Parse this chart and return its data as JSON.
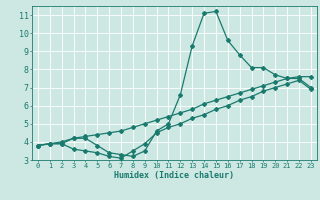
{
  "xlabel": "Humidex (Indice chaleur)",
  "xlim": [
    -0.5,
    23.5
  ],
  "ylim": [
    3,
    11.5
  ],
  "xticks": [
    0,
    1,
    2,
    3,
    4,
    5,
    6,
    7,
    8,
    9,
    10,
    11,
    12,
    13,
    14,
    15,
    16,
    17,
    18,
    19,
    20,
    21,
    22,
    23
  ],
  "yticks": [
    3,
    4,
    5,
    6,
    7,
    8,
    9,
    10,
    11
  ],
  "bg_color": "#cde8e3",
  "line_color": "#1a7a6e",
  "grid_color": "#ffffff",
  "line1_x": [
    0,
    1,
    2,
    3,
    4,
    5,
    6,
    7,
    8,
    9,
    10,
    11,
    12,
    13,
    14,
    15,
    16,
    17,
    18,
    19,
    20,
    21,
    22,
    23
  ],
  "line1_y": [
    3.8,
    3.9,
    3.9,
    4.2,
    4.2,
    3.8,
    3.4,
    3.3,
    3.2,
    3.5,
    4.6,
    5.0,
    6.6,
    9.3,
    11.1,
    11.2,
    9.6,
    8.8,
    8.1,
    8.1,
    7.7,
    7.5,
    7.6,
    7.6
  ],
  "line2_x": [
    0,
    1,
    2,
    3,
    4,
    5,
    6,
    7,
    8,
    9,
    10,
    11,
    12,
    13,
    14,
    15,
    16,
    17,
    18,
    19,
    20,
    21,
    22,
    23
  ],
  "line2_y": [
    3.8,
    3.9,
    3.9,
    3.6,
    3.5,
    3.4,
    3.2,
    3.1,
    3.5,
    3.9,
    4.5,
    4.8,
    5.0,
    5.3,
    5.5,
    5.8,
    6.0,
    6.3,
    6.5,
    6.8,
    7.0,
    7.2,
    7.4,
    6.9
  ],
  "line3_x": [
    0,
    1,
    2,
    3,
    4,
    5,
    6,
    7,
    8,
    9,
    10,
    11,
    12,
    13,
    14,
    15,
    16,
    17,
    18,
    19,
    20,
    21,
    22,
    23
  ],
  "line3_y": [
    3.8,
    3.9,
    4.0,
    4.2,
    4.3,
    4.4,
    4.5,
    4.6,
    4.8,
    5.0,
    5.2,
    5.4,
    5.6,
    5.8,
    6.1,
    6.3,
    6.5,
    6.7,
    6.9,
    7.1,
    7.3,
    7.5,
    7.5,
    7.0
  ]
}
